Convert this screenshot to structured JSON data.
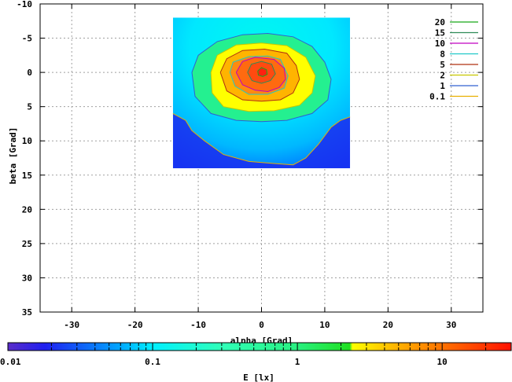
{
  "chart_data": {
    "type": "heatmap",
    "xlabel": "alpha [Grad]",
    "ylabel": "beta [Grad]",
    "xlim": [
      -35,
      35
    ],
    "ylim": [
      -10,
      35
    ],
    "y_inverted": true,
    "grid": true,
    "x_ticks": [
      -30,
      -20,
      -10,
      0,
      10,
      20,
      30
    ],
    "y_ticks": [
      -10,
      -5,
      0,
      5,
      10,
      15,
      20,
      25,
      30,
      35
    ],
    "heatmap_extent": {
      "alpha": [
        -14,
        14
      ],
      "beta": [
        -8,
        14
      ]
    },
    "peak": {
      "alpha": 0.5,
      "beta": 0,
      "value": 20
    },
    "legend": {
      "position": "top-right",
      "entries": [
        {
          "label": "20",
          "color": "#18a818"
        },
        {
          "label": "15",
          "color": "#2e8b57"
        },
        {
          "label": "10",
          "color": "#c000c0"
        },
        {
          "label": "8",
          "color": "#20c8c8"
        },
        {
          "label": "5",
          "color": "#b03010"
        },
        {
          "label": "2",
          "color": "#c8c800"
        },
        {
          "label": "1",
          "color": "#3060d0"
        },
        {
          "label": "0.1",
          "color": "#e8b000"
        }
      ]
    },
    "contours": [
      {
        "level": 0.1,
        "color": "#e8b000",
        "points": [
          [
            -14,
            6
          ],
          [
            -12,
            7
          ],
          [
            -11,
            8.5
          ],
          [
            -9,
            10
          ],
          [
            -6,
            12
          ],
          [
            -2,
            13
          ],
          [
            2,
            13.3
          ],
          [
            5,
            13.5
          ],
          [
            7,
            12.5
          ],
          [
            9,
            10.5
          ],
          [
            11,
            8
          ],
          [
            12.5,
            7
          ],
          [
            14,
            6.5
          ]
        ]
      },
      {
        "level": 1,
        "color": "#3060d0",
        "points": [
          [
            -11,
            0
          ],
          [
            -10,
            -2.5
          ],
          [
            -7,
            -4.5
          ],
          [
            -3,
            -5.5
          ],
          [
            1,
            -5.7
          ],
          [
            5,
            -5.2
          ],
          [
            8,
            -3.8
          ],
          [
            10,
            -1.5
          ],
          [
            11,
            1
          ],
          [
            10.5,
            4
          ],
          [
            8,
            6
          ],
          [
            4,
            7
          ],
          [
            0,
            7.2
          ],
          [
            -4,
            7
          ],
          [
            -8,
            6
          ],
          [
            -10.5,
            3.5
          ],
          [
            -11,
            0
          ]
        ]
      },
      {
        "level": 2,
        "color": "#c8c800",
        "points": [
          [
            -8,
            0
          ],
          [
            -7,
            -2.5
          ],
          [
            -4,
            -4
          ],
          [
            0,
            -4.3
          ],
          [
            4,
            -3.9
          ],
          [
            7,
            -2.2
          ],
          [
            8.5,
            0.5
          ],
          [
            8,
            3
          ],
          [
            6,
            4.8
          ],
          [
            2,
            5.6
          ],
          [
            -2,
            5.7
          ],
          [
            -6,
            5
          ],
          [
            -7.8,
            3
          ],
          [
            -8,
            0
          ]
        ]
      },
      {
        "level": 5,
        "color": "#b03010",
        "points": [
          [
            -6.5,
            0
          ],
          [
            -5.5,
            -2
          ],
          [
            -3,
            -3.2
          ],
          [
            0.5,
            -3.4
          ],
          [
            4,
            -2.8
          ],
          [
            5.5,
            -1
          ],
          [
            6,
            1
          ],
          [
            5,
            3
          ],
          [
            3,
            4
          ],
          [
            0,
            4.2
          ],
          [
            -3,
            4
          ],
          [
            -5.5,
            2.7
          ],
          [
            -6.5,
            0
          ]
        ]
      },
      {
        "level": 8,
        "color": "#20c8c8",
        "points": [
          [
            -5,
            0
          ],
          [
            -4.5,
            -1.5
          ],
          [
            -2,
            -2.3
          ],
          [
            1,
            -2.4
          ],
          [
            3,
            -1.9
          ],
          [
            4.2,
            0.5
          ],
          [
            3.6,
            2.3
          ],
          [
            1,
            3.2
          ],
          [
            -2,
            3.2
          ],
          [
            -4.2,
            2
          ],
          [
            -5,
            0
          ]
        ]
      },
      {
        "level": 10,
        "color": "#c000c0",
        "points": [
          [
            -4,
            0
          ],
          [
            -3,
            -1.6
          ],
          [
            -1,
            -2.2
          ],
          [
            2,
            -1.9
          ],
          [
            3.6,
            -0.6
          ],
          [
            3.8,
            1
          ],
          [
            2.8,
            2.2
          ],
          [
            1,
            2.8
          ],
          [
            -1,
            2.6
          ],
          [
            -3,
            1.8
          ],
          [
            -4,
            0
          ]
        ]
      },
      {
        "level": 15,
        "color": "#2e8b57",
        "points": [
          [
            -2.2,
            0
          ],
          [
            -1.6,
            -1.2
          ],
          [
            0,
            -1.6
          ],
          [
            1.6,
            -1.2
          ],
          [
            2.2,
            0.2
          ],
          [
            1.4,
            1.2
          ],
          [
            0,
            1.6
          ],
          [
            -1.5,
            1.2
          ],
          [
            -2.2,
            0
          ]
        ]
      },
      {
        "level": 20,
        "color": "#18a818",
        "points": [
          [
            -0.6,
            -0.2
          ],
          [
            0,
            -0.7
          ],
          [
            0.8,
            -0.4
          ],
          [
            0.9,
            0.3
          ],
          [
            0.2,
            0.6
          ],
          [
            -0.5,
            0.4
          ],
          [
            -0.6,
            -0.2
          ]
        ]
      }
    ],
    "colorbar": {
      "label": "E [lx]",
      "scale": "log",
      "range": [
        0.01,
        30
      ],
      "tick_labels": [
        "0.01",
        "0.1",
        "1",
        "10"
      ],
      "tick_values": [
        0.01,
        0.1,
        1,
        10
      ],
      "minor_tick_values": [
        0.02,
        0.03,
        0.04,
        0.05,
        0.06,
        0.07,
        0.08,
        0.09,
        0.2,
        0.3,
        0.4,
        0.5,
        0.6,
        0.7,
        0.8,
        0.9,
        2,
        3,
        4,
        5,
        6,
        7,
        8,
        9,
        20,
        30
      ],
      "stops": [
        {
          "value": 0.01,
          "color": "#5a2dc8"
        },
        {
          "value": 0.018,
          "color": "#1f1ff0"
        },
        {
          "value": 0.06,
          "color": "#00a8ff"
        },
        {
          "value": 0.1,
          "color": "#00f0ff"
        },
        {
          "value": 0.3,
          "color": "#30ffb8"
        },
        {
          "value": 1,
          "color": "#28f080"
        },
        {
          "value": 2.3,
          "color": "#20e020"
        },
        {
          "value": 2.4,
          "color": "#ffff00"
        },
        {
          "value": 5,
          "color": "#ffb000"
        },
        {
          "value": 30,
          "color": "#ff1000"
        }
      ]
    }
  }
}
